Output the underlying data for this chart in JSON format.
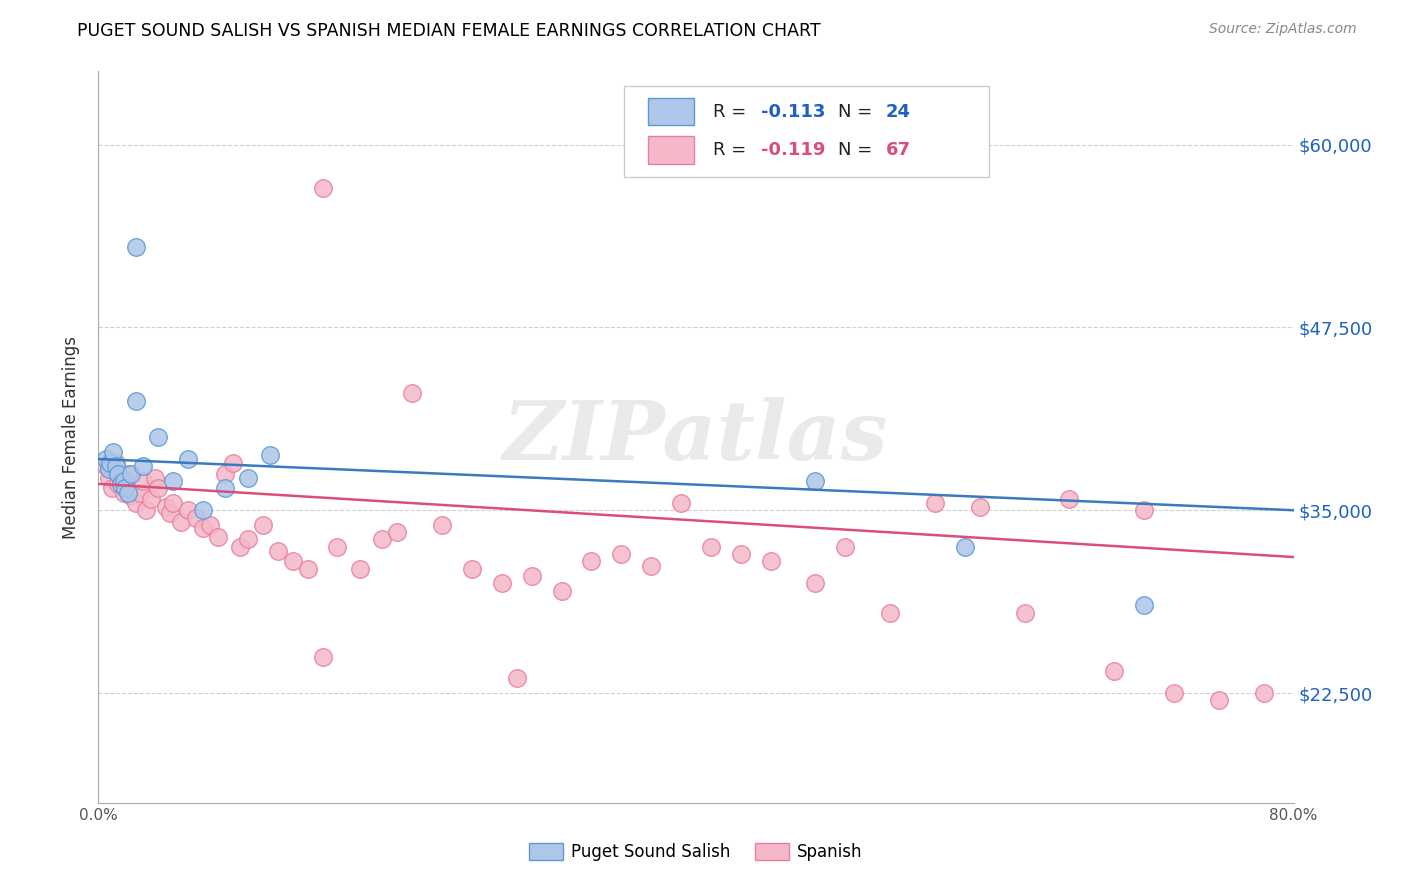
{
  "title": "PUGET SOUND SALISH VS SPANISH MEDIAN FEMALE EARNINGS CORRELATION CHART",
  "source": "Source: ZipAtlas.com",
  "ylabel": "Median Female Earnings",
  "xlim": [
    0.0,
    0.8
  ],
  "ylim": [
    15000,
    65000
  ],
  "yticks": [
    22500,
    35000,
    47500,
    60000
  ],
  "ytick_labels": [
    "$22,500",
    "$35,000",
    "$47,500",
    "$60,000"
  ],
  "xtick_labels": [
    "0.0%",
    "",
    "",
    "",
    "",
    "",
    "",
    "",
    "80.0%"
  ],
  "blue_color": "#aec6e8",
  "blue_edge_color": "#5b9bd5",
  "blue_line_color": "#3a7abf",
  "pink_color": "#f4b8c8",
  "pink_edge_color": "#e87fa0",
  "pink_line_color": "#d94f7a",
  "grid_color": "#d0d0d0",
  "background_color": "#ffffff",
  "watermark": "ZIPatlas",
  "blue_x": [
    0.005,
    0.007,
    0.008,
    0.01,
    0.012,
    0.013,
    0.015,
    0.017,
    0.018,
    0.02,
    0.022,
    0.025,
    0.03,
    0.04,
    0.05,
    0.06,
    0.07,
    0.085,
    0.1,
    0.115,
    0.48,
    0.58,
    0.7,
    0.025
  ],
  "blue_y": [
    38500,
    37800,
    38200,
    39000,
    38000,
    37500,
    36800,
    37000,
    36500,
    36200,
    37500,
    42500,
    38000,
    40000,
    37000,
    38500,
    35000,
    36500,
    37200,
    38800,
    37000,
    32500,
    28500,
    53000
  ],
  "pink_x": [
    0.005,
    0.007,
    0.009,
    0.01,
    0.012,
    0.013,
    0.015,
    0.017,
    0.018,
    0.02,
    0.022,
    0.025,
    0.028,
    0.03,
    0.032,
    0.035,
    0.038,
    0.04,
    0.045,
    0.048,
    0.05,
    0.055,
    0.06,
    0.065,
    0.07,
    0.075,
    0.08,
    0.085,
    0.09,
    0.095,
    0.1,
    0.11,
    0.12,
    0.13,
    0.14,
    0.15,
    0.16,
    0.175,
    0.19,
    0.2,
    0.21,
    0.23,
    0.25,
    0.27,
    0.29,
    0.31,
    0.33,
    0.35,
    0.37,
    0.39,
    0.41,
    0.43,
    0.45,
    0.48,
    0.5,
    0.53,
    0.56,
    0.59,
    0.62,
    0.65,
    0.68,
    0.7,
    0.72,
    0.75,
    0.78,
    0.15,
    0.28
  ],
  "pink_y": [
    38000,
    37200,
    36500,
    37800,
    38200,
    36800,
    37000,
    36200,
    36800,
    37500,
    36000,
    35500,
    36200,
    37000,
    35000,
    35800,
    37200,
    36500,
    35200,
    34800,
    35500,
    34200,
    35000,
    34500,
    33800,
    34000,
    33200,
    37500,
    38200,
    32500,
    33000,
    34000,
    32200,
    31500,
    31000,
    57000,
    32500,
    31000,
    33000,
    33500,
    43000,
    34000,
    31000,
    30000,
    30500,
    29500,
    31500,
    32000,
    31200,
    35500,
    32500,
    32000,
    31500,
    30000,
    32500,
    28000,
    35500,
    35200,
    28000,
    35800,
    24000,
    35000,
    22500,
    22000,
    22500,
    25000,
    23500
  ],
  "blue_trend_x0": 0.0,
  "blue_trend_y0": 38500,
  "blue_trend_x1": 0.8,
  "blue_trend_y1": 35000,
  "pink_trend_x0": 0.0,
  "pink_trend_y0": 36800,
  "pink_trend_x1": 0.8,
  "pink_trend_y1": 31800
}
